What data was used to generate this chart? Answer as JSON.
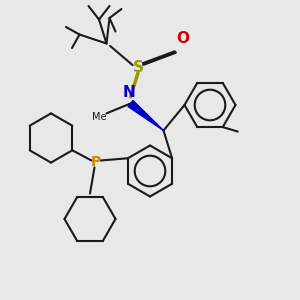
{
  "bg_color": "#e8e8e8",
  "bond_color": "#1a1a1a",
  "S_color": "#999900",
  "N_color": "#0000cc",
  "O_color": "#cc0000",
  "P_color": "#cc8800",
  "bond_width": 1.5,
  "figsize": [
    3.0,
    3.0
  ],
  "dpi": 100,
  "xlim": [
    0,
    10
  ],
  "ylim": [
    0,
    10
  ]
}
